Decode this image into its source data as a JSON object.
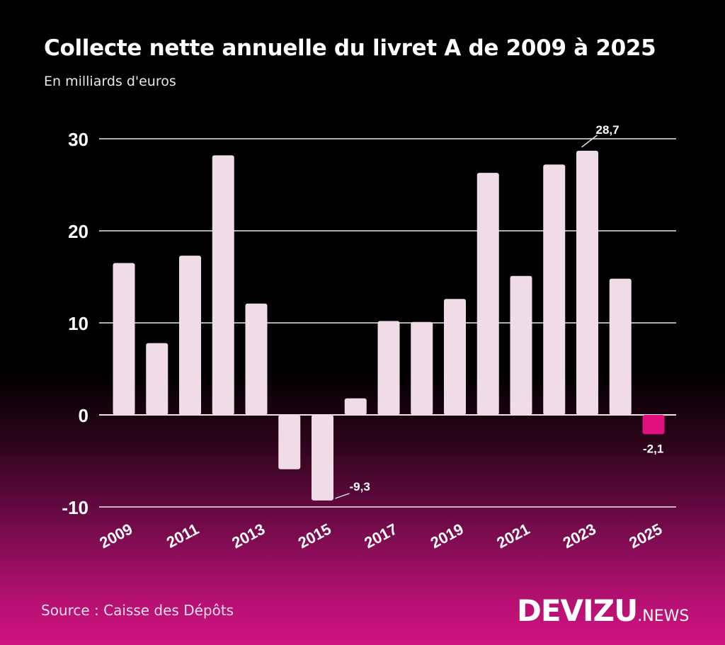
{
  "title": "Collecte nette annuelle du livret A de 2009 à 2025",
  "subtitle": "En milliards d'euros",
  "source": "Source : Caisse des Dépôts",
  "logo": {
    "main": "DEVIZU",
    "suffix": ".NEWS"
  },
  "colors": {
    "bar": "#f0dce6",
    "negative_highlight": "#e0117f",
    "background_top": "#000000",
    "background_bottom": "#d0127f"
  },
  "chart_data": {
    "type": "bar",
    "title": "Collecte nette annuelle du livret A de 2009 à 2025",
    "subtitle": "En milliards d'euros",
    "categories": [
      "2009",
      "2010",
      "2011",
      "2012",
      "2013",
      "2014",
      "2015",
      "2016",
      "2017",
      "2018",
      "2019",
      "2020",
      "2021",
      "2022",
      "2023",
      "2024",
      "2025"
    ],
    "values": [
      16.5,
      7.8,
      17.3,
      28.2,
      12.1,
      -5.9,
      -9.3,
      1.8,
      10.2,
      10.1,
      12.6,
      26.3,
      15.1,
      27.2,
      28.7,
      14.8,
      -2.1
    ],
    "x_tick_labels": [
      "2009",
      "2011",
      "2013",
      "2015",
      "2017",
      "2019",
      "2021",
      "2023",
      "2025"
    ],
    "y_ticks": [
      -10,
      0,
      10,
      20,
      30
    ],
    "y_tick_labels": [
      "-10",
      "0",
      "10",
      "20",
      "30"
    ],
    "ylim": [
      -10,
      30
    ],
    "grid": true,
    "annotations": [
      {
        "category": "2015",
        "label": "-9,3"
      },
      {
        "category": "2023",
        "label": "28,7"
      },
      {
        "category": "2025",
        "label": "-2,1"
      }
    ],
    "highlight": {
      "category": "2025"
    }
  }
}
